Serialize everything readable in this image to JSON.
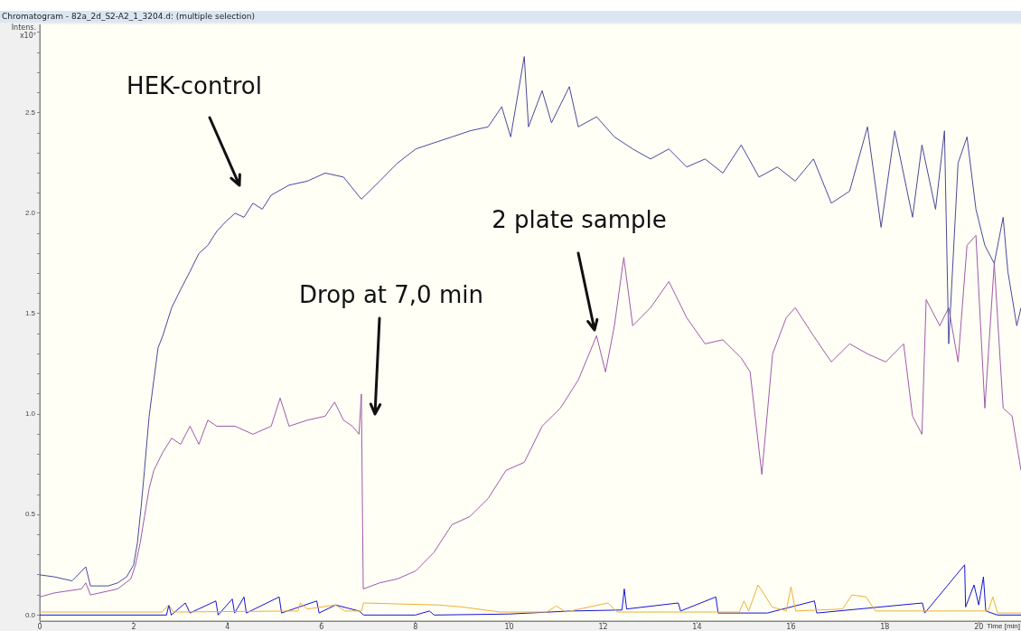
{
  "chart_data": {
    "type": "line",
    "title": "Chromatogram - 82a_2d_S2-A2_1_3204.d: (multiple selection)",
    "xlabel": "Time [min]",
    "ylabel": "Intens. x10⁷",
    "xlim": [
      0,
      20.9
    ],
    "ylim": [
      -0.03,
      2.94
    ],
    "xticks": [
      0,
      2,
      4,
      6,
      8,
      10,
      12,
      14,
      16,
      18,
      20
    ],
    "yticks": [
      {
        "value": 0,
        "label": "0.0"
      },
      {
        "value": 0.1,
        "label": null
      },
      {
        "value": 0.2,
        "label": null
      },
      {
        "value": 0.3,
        "label": null
      },
      {
        "value": 0.4,
        "label": null
      },
      {
        "value": 0.5,
        "label": "0.5"
      },
      {
        "value": 0.6,
        "label": null
      },
      {
        "value": 0.7,
        "label": null
      },
      {
        "value": 0.8,
        "label": null
      },
      {
        "value": 0.9,
        "label": null
      },
      {
        "value": 1,
        "label": "1.0"
      },
      {
        "value": 1.1,
        "label": null
      },
      {
        "value": 1.2,
        "label": null
      },
      {
        "value": 1.3,
        "label": null
      },
      {
        "value": 1.4,
        "label": null
      },
      {
        "value": 1.5,
        "label": "1.5"
      },
      {
        "value": 1.6,
        "label": null
      },
      {
        "value": 1.7,
        "label": null
      },
      {
        "value": 1.8,
        "label": null
      },
      {
        "value": 1.9,
        "label": null
      },
      {
        "value": 2,
        "label": "2.0"
      },
      {
        "value": 2.1,
        "label": null
      },
      {
        "value": 2.2,
        "label": null
      },
      {
        "value": 2.3,
        "label": null
      },
      {
        "value": 2.4,
        "label": null
      },
      {
        "value": 2.5,
        "label": "2.5"
      },
      {
        "value": 2.6,
        "label": null
      },
      {
        "value": 2.7,
        "label": null
      },
      {
        "value": 2.8,
        "label": null
      },
      {
        "value": 2.9,
        "label": null
      }
    ],
    "grid": false,
    "legend": false,
    "marker": "none",
    "line_style": "solid",
    "series": [
      {
        "color": "#4a4a9a",
        "x": [
          0,
          0.31,
          0.69,
          0.98,
          1.08,
          1.46,
          1.66,
          1.85,
          2.0,
          2.08,
          2.16,
          2.23,
          2.33,
          2.43,
          2.52,
          2.62,
          2.81,
          3.0,
          3.2,
          3.39,
          3.58,
          3.77,
          3.97,
          4.16,
          4.35,
          4.54,
          4.74,
          4.93,
          5.31,
          5.7,
          6.08,
          6.47,
          6.85,
          7.24,
          7.62,
          8.01,
          8.39,
          8.78,
          9.16,
          9.55,
          9.84,
          10.03,
          10.32,
          10.41,
          10.7,
          10.9,
          11.28,
          11.47,
          11.86,
          12.24,
          12.63,
          13.01,
          13.4,
          13.78,
          14.17,
          14.55,
          14.94,
          15.32,
          15.71,
          16.09,
          16.48,
          16.86,
          17.25,
          17.63,
          17.92,
          18.21,
          18.59,
          18.79,
          19.08,
          19.27,
          19.36,
          19.56,
          19.75,
          19.94,
          20.13,
          20.33,
          20.52,
          20.62,
          20.81,
          20.9
        ],
        "values": [
          0.2,
          0.19,
          0.17,
          0.24,
          0.145,
          0.145,
          0.16,
          0.19,
          0.25,
          0.36,
          0.54,
          0.72,
          0.99,
          1.17,
          1.33,
          1.39,
          1.53,
          1.62,
          1.71,
          1.8,
          1.84,
          1.91,
          1.96,
          2.0,
          1.98,
          2.05,
          2.02,
          2.09,
          2.14,
          2.16,
          2.2,
          2.18,
          2.07,
          2.16,
          2.25,
          2.32,
          2.35,
          2.38,
          2.41,
          2.43,
          2.53,
          2.38,
          2.78,
          2.43,
          2.61,
          2.45,
          2.63,
          2.43,
          2.48,
          2.38,
          2.32,
          2.27,
          2.32,
          2.23,
          2.27,
          2.2,
          2.34,
          2.18,
          2.23,
          2.16,
          2.27,
          2.05,
          2.11,
          2.43,
          1.93,
          2.41,
          1.98,
          2.34,
          2.02,
          2.41,
          1.35,
          2.25,
          2.38,
          2.02,
          1.84,
          1.75,
          1.98,
          1.71,
          1.44,
          1.53
        ]
      },
      {
        "color": "#a05aa8",
        "x": [
          0,
          0.31,
          0.89,
          0.98,
          1.08,
          1.66,
          1.94,
          2.04,
          2.14,
          2.23,
          2.33,
          2.43,
          2.62,
          2.81,
          3.0,
          3.2,
          3.39,
          3.58,
          3.77,
          4.16,
          4.54,
          4.93,
          5.12,
          5.31,
          5.7,
          6.08,
          6.28,
          6.47,
          6.66,
          6.8,
          6.85,
          6.89,
          7.24,
          7.62,
          8.01,
          8.39,
          8.78,
          9.16,
          9.55,
          9.93,
          10.32,
          10.7,
          11.09,
          11.47,
          11.86,
          12.05,
          12.24,
          12.44,
          12.63,
          13.01,
          13.4,
          13.78,
          14.17,
          14.55,
          14.94,
          15.13,
          15.38,
          15.61,
          15.9,
          16.09,
          16.48,
          16.86,
          17.25,
          17.63,
          18.02,
          18.4,
          18.59,
          18.79,
          18.88,
          19.17,
          19.36,
          19.56,
          19.75,
          19.94,
          20.13,
          20.33,
          20.52,
          20.71,
          20.9
        ],
        "values": [
          0.09,
          0.11,
          0.13,
          0.16,
          0.1,
          0.13,
          0.18,
          0.25,
          0.36,
          0.49,
          0.63,
          0.72,
          0.81,
          0.88,
          0.85,
          0.94,
          0.85,
          0.97,
          0.94,
          0.94,
          0.9,
          0.94,
          1.08,
          0.94,
          0.97,
          0.99,
          1.06,
          0.97,
          0.94,
          0.9,
          1.1,
          0.13,
          0.16,
          0.18,
          0.22,
          0.31,
          0.45,
          0.49,
          0.58,
          0.72,
          0.76,
          0.94,
          1.03,
          1.17,
          1.39,
          1.21,
          1.44,
          1.78,
          1.44,
          1.53,
          1.66,
          1.48,
          1.35,
          1.37,
          1.28,
          1.21,
          0.7,
          1.3,
          1.48,
          1.53,
          1.39,
          1.26,
          1.35,
          1.3,
          1.26,
          1.35,
          0.99,
          0.9,
          1.57,
          1.44,
          1.53,
          1.26,
          1.84,
          1.89,
          1.03,
          1.75,
          1.03,
          0.99,
          0.72
        ]
      },
      {
        "color": "#f0b030",
        "x": [
          0,
          2.6,
          2.75,
          2.85,
          5.5,
          5.55,
          5.7,
          6.3,
          6.5,
          6.85,
          6.9,
          8.5,
          9.0,
          9.8,
          10.8,
          11.0,
          11.2,
          12.1,
          12.3,
          14.9,
          15.0,
          15.1,
          15.3,
          15.6,
          15.9,
          16.0,
          16.1,
          17.1,
          17.3,
          17.6,
          17.8,
          20.2,
          20.3,
          20.4,
          20.9
        ],
        "values": [
          0.015,
          0.015,
          0.05,
          0.015,
          0.02,
          0.06,
          0.03,
          0.05,
          0.02,
          0.02,
          0.06,
          0.05,
          0.04,
          0.015,
          0.015,
          0.045,
          0.015,
          0.06,
          0.015,
          0.015,
          0.07,
          0.02,
          0.15,
          0.04,
          0.02,
          0.14,
          0.02,
          0.03,
          0.1,
          0.09,
          0.02,
          0.02,
          0.09,
          0.01,
          0.01
        ]
      },
      {
        "color": "#1414d8",
        "x": [
          0,
          2.7,
          2.75,
          2.8,
          3.1,
          3.2,
          3.75,
          3.8,
          4.1,
          4.15,
          4.35,
          4.4,
          5.1,
          5.15,
          5.9,
          5.95,
          6.3,
          6.8,
          6.9,
          8.0,
          8.3,
          8.4,
          10.0,
          11.3,
          12.4,
          12.45,
          12.5,
          13.6,
          13.65,
          14.4,
          14.45,
          15.5,
          16.5,
          16.55,
          18.8,
          18.85,
          19.7,
          19.72,
          19.9,
          20.0,
          20.1,
          20.15,
          20.4,
          20.9
        ],
        "values": [
          0,
          0,
          0.05,
          0,
          0.06,
          0.01,
          0.07,
          0,
          0.08,
          0.01,
          0.09,
          0.01,
          0.09,
          0.01,
          0.07,
          0.01,
          0.05,
          0.02,
          0,
          0,
          0.02,
          0,
          0.005,
          0.02,
          0.025,
          0.13,
          0.03,
          0.06,
          0.02,
          0.09,
          0.01,
          0.01,
          0.07,
          0.01,
          0.06,
          0.01,
          0.25,
          0.04,
          0.15,
          0.05,
          0.19,
          0.02,
          0,
          0
        ]
      }
    ],
    "annotations": [
      "HEK-control",
      "Drop at 7,0 min",
      "2 plate sample"
    ]
  }
}
